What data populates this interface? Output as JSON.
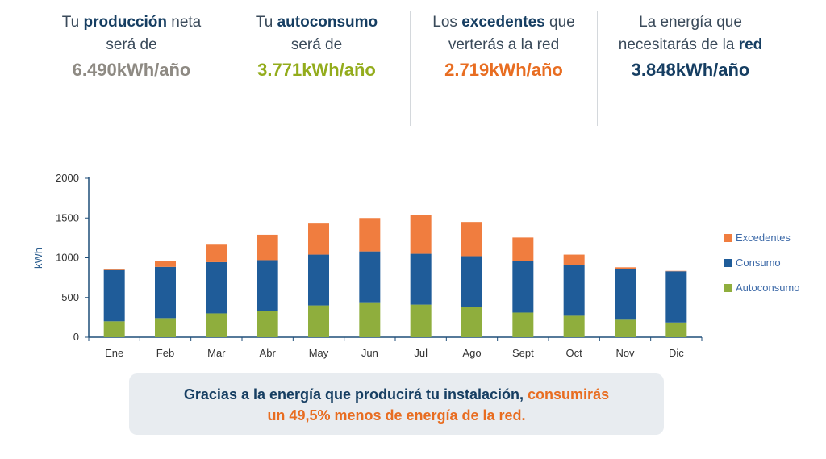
{
  "stats": [
    {
      "prefix": "Tu ",
      "bold": "producción",
      "suffix": " neta",
      "line2_prefix": "será de",
      "line2_bold": "",
      "value": "6.490kWh/año",
      "color": "#8e8a83"
    },
    {
      "prefix": "Tu ",
      "bold": "autoconsumo",
      "suffix": "",
      "line2_prefix": "será de",
      "line2_bold": "",
      "value": "3.771kWh/año",
      "color": "#93ac1c"
    },
    {
      "prefix": "Los ",
      "bold": "excedentes",
      "suffix": " que",
      "line2_prefix": "verterás a la red",
      "line2_bold": "",
      "value": "2.719kWh/año",
      "color": "#e86d21"
    },
    {
      "prefix": "La energía que",
      "bold": "",
      "suffix": "",
      "line2_prefix": "necesitarás de la ",
      "line2_bold": "red",
      "value": "3.848kWh/año",
      "color": "#163e62"
    }
  ],
  "chart_data": {
    "type": "bar",
    "stacked": true,
    "categories": [
      "Ene",
      "Feb",
      "Mar",
      "Abr",
      "May",
      "Jun",
      "Jul",
      "Ago",
      "Sept",
      "Oct",
      "Nov",
      "Dic"
    ],
    "series": [
      {
        "name": "Autoconsumo",
        "color": "#8fae3d",
        "values": [
          200,
          240,
          300,
          330,
          400,
          440,
          410,
          380,
          310,
          270,
          220,
          185
        ]
      },
      {
        "name": "Consumo",
        "color": "#1f5c99",
        "values": [
          645,
          645,
          645,
          640,
          640,
          640,
          640,
          640,
          645,
          640,
          635,
          645
        ]
      },
      {
        "name": "Excedentes",
        "color": "#f07d3f",
        "values": [
          10,
          70,
          220,
          320,
          390,
          420,
          490,
          430,
          300,
          130,
          25,
          5
        ]
      }
    ],
    "ylabel": "kWh",
    "ylim": [
      0,
      2000
    ],
    "yticks": [
      0,
      500,
      1000,
      1500,
      2000
    ],
    "legend": {
      "position": "right",
      "order": [
        "Excedentes",
        "Consumo",
        "Autoconsumo"
      ]
    }
  },
  "footer": {
    "line1_start": "Gracias a la energía que producirá tu instalación, ",
    "line1_end": "consumirás",
    "line2": "un 49,5% menos de energía de la red.",
    "dark_color": "#163e62",
    "accent_color": "#e86d21"
  }
}
